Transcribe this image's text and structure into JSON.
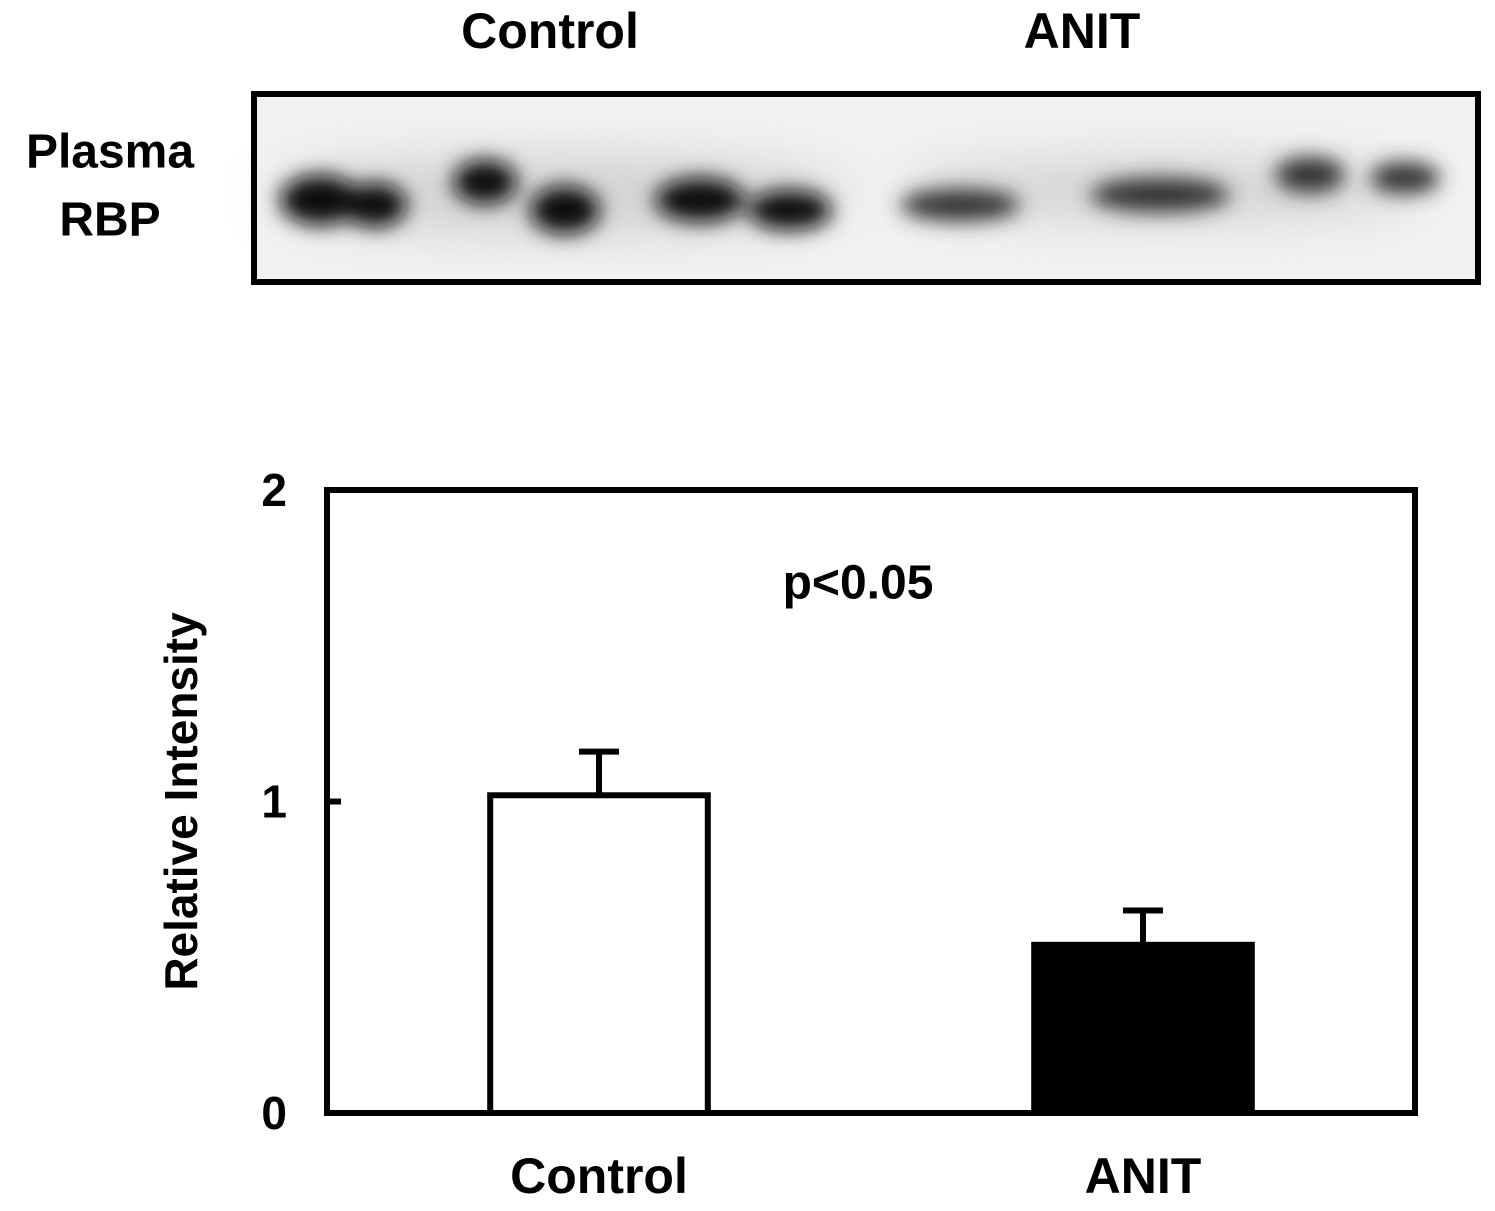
{
  "blot": {
    "lane_labels": [
      "Control",
      "ANIT"
    ],
    "row_label": [
      "Plasma",
      "RBP"
    ]
  },
  "chart_data": {
    "type": "bar",
    "y_label": "Relative Intensity",
    "annotation": "p<0.05",
    "categories": [
      "Control",
      "ANIT"
    ],
    "values": [
      1.02,
      0.54
    ],
    "errors": [
      0.14,
      0.11
    ],
    "colors": [
      "#ffffff",
      "#000000"
    ],
    "ylim": [
      0,
      2
    ],
    "yticks": [
      0,
      1,
      2
    ]
  }
}
